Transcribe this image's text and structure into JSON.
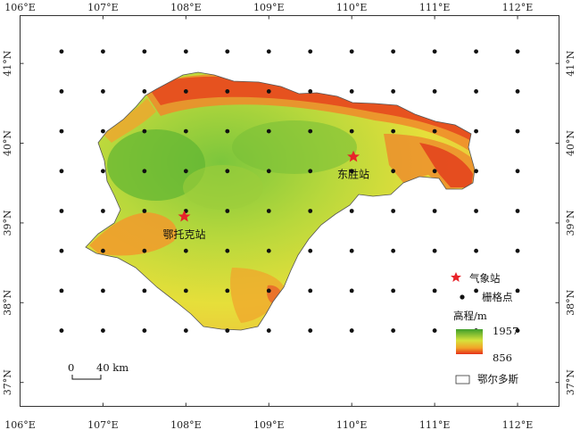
{
  "map": {
    "x_ticks": [
      "106°E",
      "107°E",
      "108°E",
      "109°E",
      "110°E",
      "111°E",
      "112°E"
    ],
    "y_ticks": [
      "41°N",
      "40°N",
      "39°N",
      "38°N",
      "37°N"
    ],
    "x_range": [
      106,
      112.5
    ],
    "y_range": [
      36.7,
      41.6
    ],
    "stations": [
      {
        "name": "鄂托克站",
        "lon": 107.98,
        "lat": 39.08
      },
      {
        "name": "东胜站",
        "lon": 110.02,
        "lat": 39.83
      }
    ],
    "grid_points": {
      "lon": [
        106.5,
        107.0,
        107.5,
        108.0,
        108.5,
        109.0,
        109.5,
        110.0,
        110.5,
        111.0,
        111.5,
        112.0
      ],
      "lat": [
        37.65,
        38.15,
        38.65,
        39.15,
        39.65,
        40.15,
        40.65,
        41.15
      ]
    },
    "scale_bar": {
      "zero": "0",
      "distance": "40 km"
    },
    "legend": {
      "station": "气象站",
      "grid_point": "栅格点",
      "elevation_title": "高程/m",
      "elevation_max": "1957",
      "elevation_min": "856",
      "region": "鄂尔多斯"
    },
    "colors": {
      "station_marker": "#e8232a",
      "grid_point": "#111111",
      "elev_high": "#4caf32",
      "elev_mid": "#e8e23a",
      "elev_low": "#e8451e",
      "frame": "#333333"
    }
  }
}
